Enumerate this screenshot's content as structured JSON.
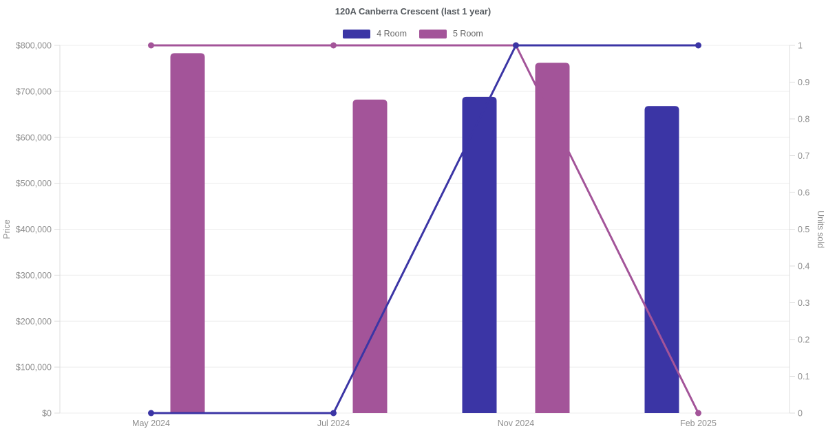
{
  "chart_data": {
    "type": "combo-bar-line",
    "title": "120A Canberra Crescent (last 1 year)",
    "categories": [
      "May 2024",
      "Jul 2024",
      "Nov 2024",
      "Feb 2025"
    ],
    "legend_position": "top",
    "grid": "horizontal",
    "left_axis": {
      "label": "Price",
      "min": 0,
      "max": 800000,
      "step": 100000,
      "tick_prefix": "$"
    },
    "right_axis": {
      "label": "Units sold",
      "min": 0,
      "max": 1,
      "step": 0.1
    },
    "series": [
      {
        "name": "4 Room",
        "color": "#3b35a5",
        "bar_metric": "price",
        "bar_values": [
          null,
          null,
          688000,
          668000
        ],
        "line_metric": "units_sold",
        "line_values": [
          0,
          0,
          1,
          1
        ]
      },
      {
        "name": "5 Room",
        "color": "#a35499",
        "bar_metric": "price",
        "bar_values": [
          783000,
          682000,
          762000,
          null
        ],
        "line_metric": "units_sold",
        "line_values": [
          1,
          1,
          1,
          0
        ]
      }
    ],
    "colors": {
      "grid": "#ececec",
      "axis": "#dcdcdc",
      "tick_text": "#8e8e8e",
      "title_text": "#555a5f",
      "legend_text": "#666666"
    }
  }
}
